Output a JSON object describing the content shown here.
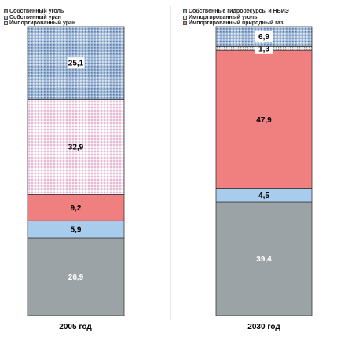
{
  "chart_data": [
    {
      "type": "bar",
      "stacked": true,
      "categories": [
        "2005 год"
      ],
      "legend": [
        "Собственный уголь",
        "Собственный уран",
        "Импортированный уран"
      ],
      "series": [
        {
          "name": "Собственный уран",
          "values": [
            26.9
          ],
          "label": "26,9",
          "color": "#9ca3a6",
          "label_color": "#ffffff"
        },
        {
          "name": "Собственный уголь",
          "values": [
            5.9
          ],
          "label": "5,9",
          "color": "#a8ccec",
          "label_color": "#000000"
        },
        {
          "values": [
            9.2
          ],
          "label": "9,2",
          "color": "#f07f7f",
          "label_color": "#000000"
        },
        {
          "name": "Импортированный уран",
          "values": [
            32.9
          ],
          "label": "32,9",
          "color": "#f3d8ea",
          "label_color": "#000000"
        },
        {
          "values": [
            25.1
          ],
          "label": "25,1",
          "color": "#a5bcd8",
          "label_color": "#000000"
        }
      ]
    },
    {
      "type": "bar",
      "stacked": true,
      "categories": [
        "2030 год"
      ],
      "legend": [
        "Собственные гидроресурсы и НВИЭ",
        "Импортированный уголь",
        "Импортированный природный газ"
      ],
      "series": [
        {
          "values": [
            39.4
          ],
          "label": "39,4",
          "color": "#9ca3a6",
          "label_color": "#ffffff"
        },
        {
          "values": [
            4.5
          ],
          "label": "4,5",
          "color": "#a8ccec",
          "label_color": "#000000"
        },
        {
          "name": "Импортированный природный газ",
          "values": [
            47.9
          ],
          "label": "47,9",
          "color": "#f07f7f",
          "label_color": "#000000"
        },
        {
          "name": "Импортированный уголь",
          "values": [
            1.3
          ],
          "label": "1,3",
          "color": "#e9e9e9",
          "label_color": "#000000"
        },
        {
          "name": "Собственные гидроресурсы и НВИЭ",
          "values": [
            6.9
          ],
          "label": "6,9",
          "color": "#a5bcd8",
          "label_color": "#000000"
        }
      ]
    }
  ]
}
